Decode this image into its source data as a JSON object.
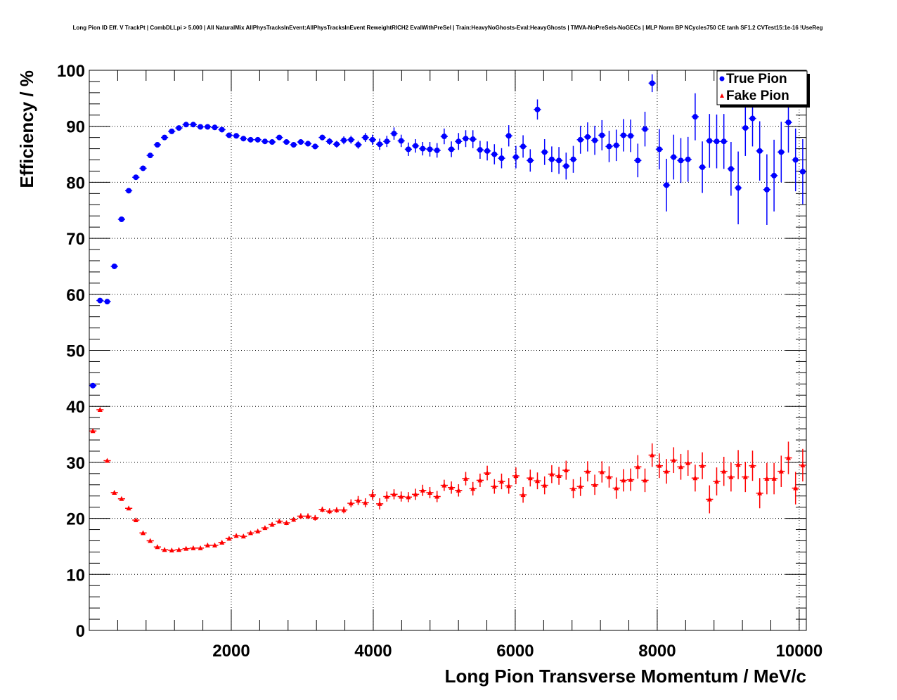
{
  "chart_data": {
    "type": "scatter",
    "title": "Long Pion ID Eff. V TrackPt | CombDLLpi > 5.000 | All NaturalMix AllPhysTracksInEvent:AllPhysTracksInEvent ReweightRICH2 EvalWithPreSel | Train:HeavyNoGhosts-Eval:HeavyGhosts | TMVA-NoPreSels-NoGECs | MLP Norm BP NCycles750 CE tanh SF1.2 CVTest15:1e-16 !UseReg",
    "xlabel": "Long Pion Transverse Momentum / MeV/c",
    "ylabel": "Efficiency / %",
    "xlim": [
      0,
      10100
    ],
    "ylim": [
      0,
      100
    ],
    "x_ticks": [
      2000,
      4000,
      6000,
      8000,
      10000
    ],
    "x_tick_labels": [
      "2000",
      "4000",
      "6000",
      "8000",
      "10000"
    ],
    "y_ticks": [
      0,
      10,
      20,
      30,
      40,
      50,
      60,
      70,
      80,
      90,
      100
    ],
    "y_tick_labels": [
      "0",
      "10",
      "20",
      "30",
      "40",
      "50",
      "60",
      "70",
      "80",
      "90",
      "100"
    ],
    "grid": true,
    "legend_position": "top-right",
    "bin_width": 101,
    "x_first_center": 50.5,
    "series": [
      {
        "name": "True Pion",
        "color": "#0000ff",
        "marker": "circle",
        "values": [
          43.7,
          58.9,
          58.7,
          65.0,
          73.4,
          78.5,
          80.9,
          82.5,
          84.8,
          86.7,
          88.0,
          89.1,
          89.7,
          90.3,
          90.3,
          89.9,
          89.9,
          89.8,
          89.4,
          88.4,
          88.3,
          87.8,
          87.6,
          87.6,
          87.3,
          87.2,
          88.0,
          87.2,
          86.7,
          87.2,
          86.9,
          86.4,
          88.0,
          87.3,
          86.8,
          87.5,
          87.6,
          86.7,
          88.0,
          87.6,
          86.8,
          87.3,
          88.7,
          87.4,
          85.9,
          86.5,
          86.0,
          85.9,
          85.7,
          88.2,
          85.9,
          87.3,
          87.8,
          87.7,
          85.8,
          85.6,
          85.0,
          84.3,
          88.3,
          84.5,
          86.4,
          83.9,
          93.0,
          85.4,
          84.1,
          83.9,
          82.9,
          84.1,
          87.6,
          88.1,
          87.5,
          88.4,
          86.4,
          86.6,
          88.4,
          88.3,
          83.9,
          89.5,
          97.7,
          85.9,
          79.5,
          84.5,
          83.9,
          84.1,
          91.7,
          82.7,
          87.4,
          87.3,
          87.3,
          82.4,
          79.0,
          89.7,
          91.4,
          85.6,
          78.7,
          81.2,
          85.4,
          90.7,
          84.0,
          81.9
        ],
        "errors": [
          0.3,
          0.3,
          0.3,
          0.3,
          0.3,
          0.3,
          0.3,
          0.3,
          0.3,
          0.3,
          0.3,
          0.3,
          0.3,
          0.3,
          0.3,
          0.3,
          0.3,
          0.3,
          0.3,
          0.3,
          0.3,
          0.3,
          0.3,
          0.3,
          0.3,
          0.3,
          0.4,
          0.4,
          0.4,
          0.4,
          0.5,
          0.5,
          0.5,
          0.6,
          0.6,
          0.7,
          0.7,
          0.7,
          0.8,
          0.9,
          1.0,
          1.0,
          1.1,
          1.1,
          1.2,
          1.2,
          1.2,
          1.3,
          1.3,
          1.4,
          1.4,
          1.5,
          1.5,
          1.6,
          1.6,
          1.7,
          1.8,
          1.8,
          1.9,
          2.0,
          2.0,
          2.0,
          1.8,
          2.3,
          2.3,
          2.4,
          2.4,
          2.4,
          2.5,
          2.6,
          2.6,
          2.7,
          2.8,
          2.8,
          2.9,
          2.9,
          3.0,
          3.1,
          1.6,
          3.6,
          4.7,
          4.0,
          4.0,
          4.0,
          4.2,
          4.6,
          4.8,
          4.8,
          4.9,
          4.8,
          6.5,
          5.0,
          5.0,
          5.3,
          6.3,
          6.4,
          5.4,
          5.4,
          5.6,
          5.8
        ],
        "legend_label": "True Pion"
      },
      {
        "name": "Fake Pion",
        "color": "#ff0000",
        "marker": "triangle",
        "values": [
          35.6,
          39.4,
          30.3,
          24.6,
          23.5,
          21.8,
          19.7,
          17.4,
          16.0,
          14.9,
          14.4,
          14.3,
          14.4,
          14.6,
          14.7,
          14.7,
          15.2,
          15.2,
          15.7,
          16.4,
          16.9,
          16.8,
          17.4,
          17.7,
          18.3,
          18.9,
          19.5,
          19.2,
          19.8,
          20.4,
          20.4,
          20.1,
          21.6,
          21.3,
          21.5,
          21.5,
          22.7,
          23.2,
          22.8,
          24.2,
          22.6,
          23.9,
          24.3,
          23.9,
          23.8,
          24.3,
          25.0,
          24.6,
          23.9,
          25.9,
          25.5,
          25.0,
          27.1,
          25.3,
          26.8,
          28.1,
          25.7,
          26.6,
          25.8,
          27.6,
          24.2,
          27.2,
          26.7,
          25.9,
          27.9,
          27.6,
          28.6,
          25.3,
          25.7,
          28.4,
          26.0,
          28.3,
          27.4,
          25.4,
          26.8,
          26.9,
          29.2,
          26.8,
          31.3,
          29.4,
          28.4,
          30.4,
          29.2,
          29.9,
          27.2,
          29.4,
          23.4,
          26.6,
          28.4,
          27.4,
          29.6,
          27.4,
          29.4,
          24.5,
          27.1,
          27.1,
          28.4,
          30.8,
          25.4,
          29.5
        ],
        "errors": [
          0.3,
          0.3,
          0.3,
          0.3,
          0.3,
          0.3,
          0.3,
          0.3,
          0.3,
          0.3,
          0.3,
          0.3,
          0.3,
          0.3,
          0.3,
          0.3,
          0.3,
          0.3,
          0.3,
          0.3,
          0.3,
          0.3,
          0.3,
          0.3,
          0.3,
          0.4,
          0.4,
          0.4,
          0.4,
          0.5,
          0.5,
          0.5,
          0.5,
          0.5,
          0.5,
          0.6,
          0.7,
          0.8,
          0.8,
          0.9,
          1.0,
          0.9,
          0.9,
          0.9,
          0.9,
          1.0,
          1.0,
          1.0,
          1.0,
          1.0,
          1.1,
          1.1,
          1.2,
          1.2,
          1.2,
          1.3,
          1.3,
          1.4,
          1.4,
          1.5,
          1.4,
          1.5,
          1.5,
          1.6,
          1.6,
          1.6,
          1.7,
          1.7,
          1.7,
          1.8,
          1.8,
          1.9,
          1.9,
          1.9,
          2.0,
          2.0,
          2.1,
          2.1,
          2.1,
          2.2,
          2.2,
          2.3,
          2.3,
          2.3,
          2.4,
          2.4,
          2.5,
          2.5,
          2.6,
          2.6,
          2.6,
          2.7,
          2.7,
          2.7,
          2.8,
          2.8,
          2.8,
          2.9,
          2.9,
          2.9
        ],
        "legend_label": "Fake Pion"
      }
    ]
  }
}
